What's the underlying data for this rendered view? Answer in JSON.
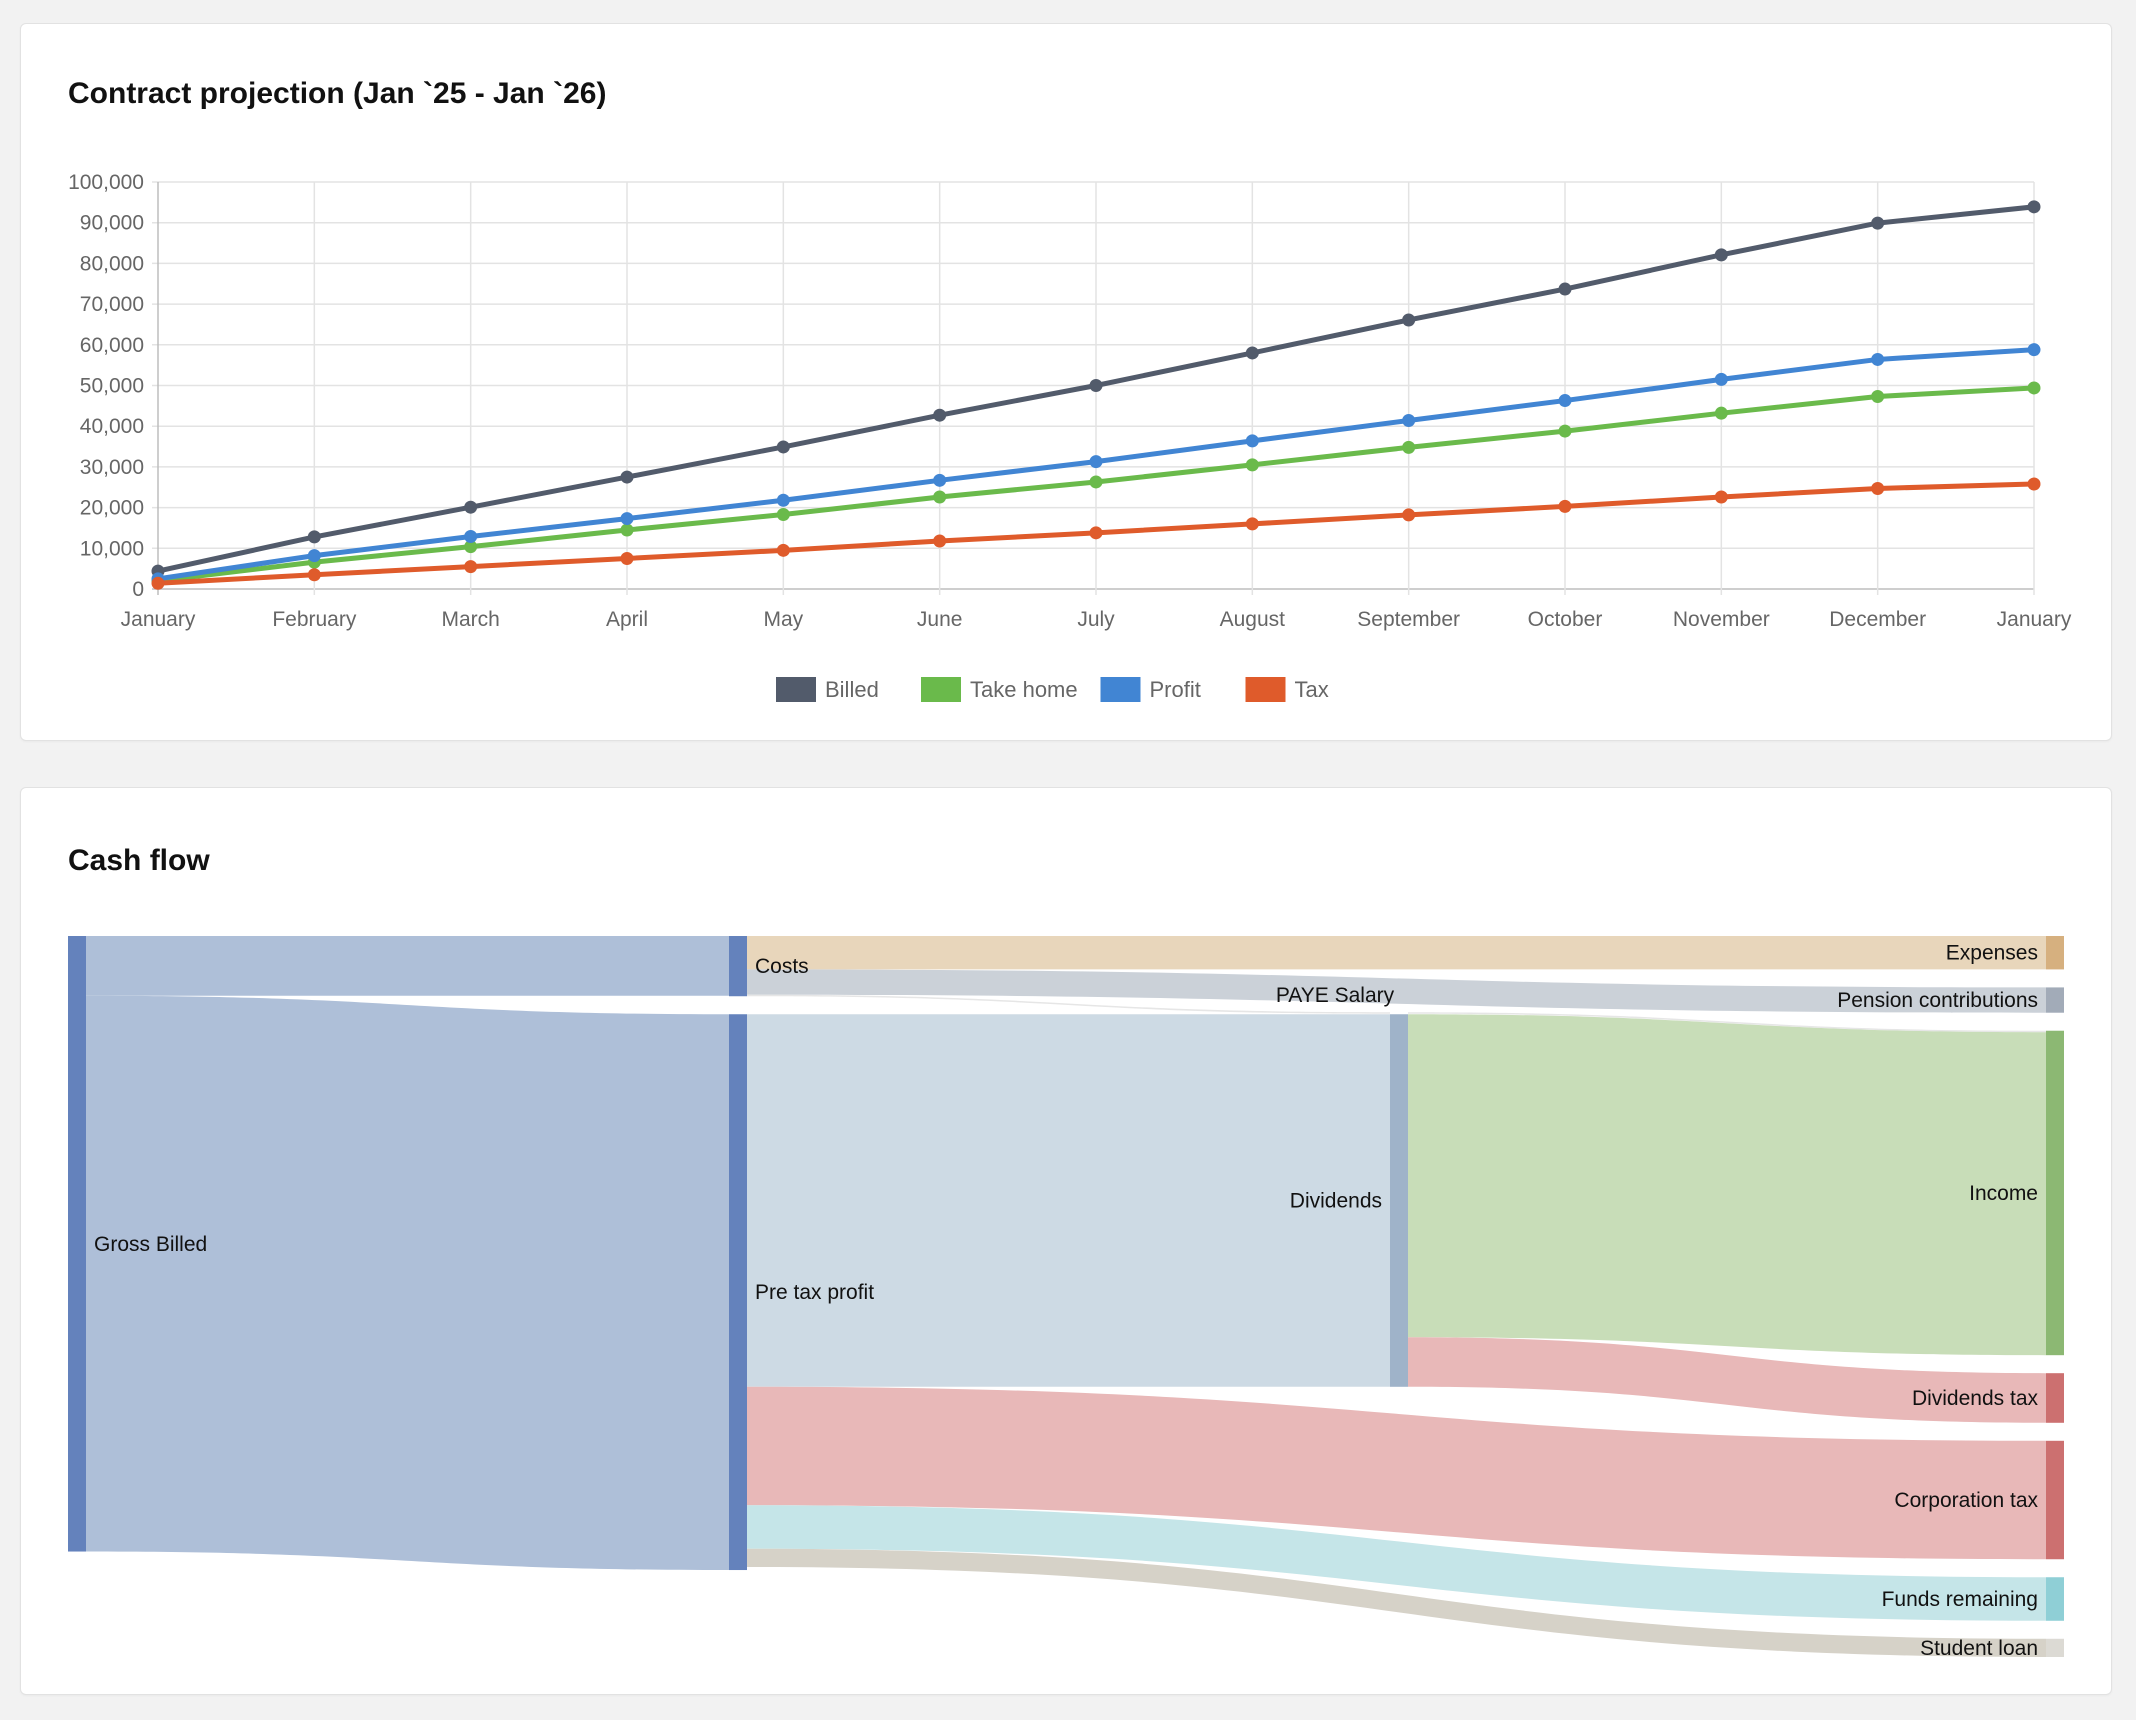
{
  "charts": {
    "projection_title": "Contract projection (Jan `25 - Jan `26)",
    "cashflow_title": "Cash flow"
  },
  "chart_data": [
    {
      "type": "line",
      "title": "Contract projection (Jan `25 - Jan `26)",
      "x": [
        "January",
        "February",
        "March",
        "April",
        "May",
        "June",
        "July",
        "August",
        "September",
        "October",
        "November",
        "December",
        "January"
      ],
      "ylim": [
        0,
        100000
      ],
      "yticks": [
        0,
        10000,
        20000,
        30000,
        40000,
        50000,
        60000,
        70000,
        80000,
        90000,
        100000
      ],
      "ytick_labels": [
        "0",
        "10,000",
        "20,000",
        "30,000",
        "40,000",
        "50,000",
        "60,000",
        "70,000",
        "80,000",
        "90,000",
        "100,000"
      ],
      "grid": true,
      "legend_position": "bottom",
      "series": [
        {
          "name": "Billed",
          "color": "#525b6b",
          "values": [
            4400,
            12800,
            20100,
            27500,
            34900,
            42700,
            50000,
            58000,
            66100,
            73700,
            82100,
            89900,
            93900
          ]
        },
        {
          "name": "Take home",
          "color": "#6aba4b",
          "values": [
            2000,
            6600,
            10400,
            14500,
            18300,
            22600,
            26300,
            30500,
            34800,
            38800,
            43200,
            47300,
            49400
          ]
        },
        {
          "name": "Profit",
          "color": "#4185d3",
          "values": [
            2500,
            8200,
            12900,
            17300,
            21800,
            26700,
            31300,
            36400,
            41400,
            46300,
            51500,
            56400,
            58800
          ]
        },
        {
          "name": "Tax",
          "color": "#df5b2b",
          "values": [
            1400,
            3500,
            5500,
            7500,
            9500,
            11800,
            13800,
            16000,
            18200,
            20300,
            22600,
            24700,
            25800
          ]
        }
      ]
    },
    {
      "type": "sankey",
      "title": "Cash flow",
      "columns": [
        [
          "Gross Billed"
        ],
        [
          "Costs",
          "Pre tax profit"
        ],
        [
          "PAYE Salary",
          "Dividends"
        ],
        [
          "Expenses",
          "Pension contributions",
          "Income",
          "Dividends tax",
          "Corporation tax",
          "Funds remaining",
          "Student loan"
        ]
      ],
      "nodes": [
        {
          "name": "Gross Billed",
          "color": "#6482bc"
        },
        {
          "name": "Costs",
          "color": "#6482bc"
        },
        {
          "name": "Pre tax profit",
          "color": "#6482bc"
        },
        {
          "name": "PAYE Salary",
          "color": "#b6b6b6"
        },
        {
          "name": "Dividends",
          "color": "#9fb3c9"
        },
        {
          "name": "Expenses",
          "color": "#d6b07f"
        },
        {
          "name": "Pension contributions",
          "color": "#a2abb8"
        },
        {
          "name": "Income",
          "color": "#8cb873"
        },
        {
          "name": "Dividends tax",
          "color": "#cc7070"
        },
        {
          "name": "Corporation tax",
          "color": "#cc7070"
        },
        {
          "name": "Funds remaining",
          "color": "#8fcfd6"
        },
        {
          "name": "Student loan",
          "color": "#dcdad4"
        }
      ],
      "links": [
        {
          "source": "Gross Billed",
          "target": "Costs",
          "value": 5.9,
          "color": "#aebfd8"
        },
        {
          "source": "Gross Billed",
          "target": "Pre tax profit",
          "value": 54.9,
          "color": "#aebfd8"
        },
        {
          "source": "Costs",
          "target": "Expenses",
          "value": 3.3,
          "color": "#e8d6bb"
        },
        {
          "source": "Costs",
          "target": "Pension contributions",
          "value": 2.5,
          "color": "#cbd1d8"
        },
        {
          "source": "Costs",
          "target": "PAYE Salary",
          "value": 0.15,
          "color": "#e6e6e6"
        },
        {
          "source": "PAYE Salary",
          "target": "Income",
          "value": 0.15,
          "color": "#e6e6e6"
        },
        {
          "source": "Pre tax profit",
          "target": "Dividends",
          "value": 36.8,
          "color": "#cddae4"
        },
        {
          "source": "Pre tax profit",
          "target": "Corporation tax",
          "value": 11.7,
          "color": "#e8b8b8"
        },
        {
          "source": "Pre tax profit",
          "target": "Funds remaining",
          "value": 4.3,
          "color": "#c5e5e8"
        },
        {
          "source": "Pre tax profit",
          "target": "Student loan",
          "value": 1.8,
          "color": "#d6d2c8"
        },
        {
          "source": "Dividends",
          "target": "Income",
          "value": 31.9,
          "color": "#c8ddb8"
        },
        {
          "source": "Dividends",
          "target": "Dividends tax",
          "value": 4.9,
          "color": "#e8b8b8"
        }
      ]
    }
  ]
}
